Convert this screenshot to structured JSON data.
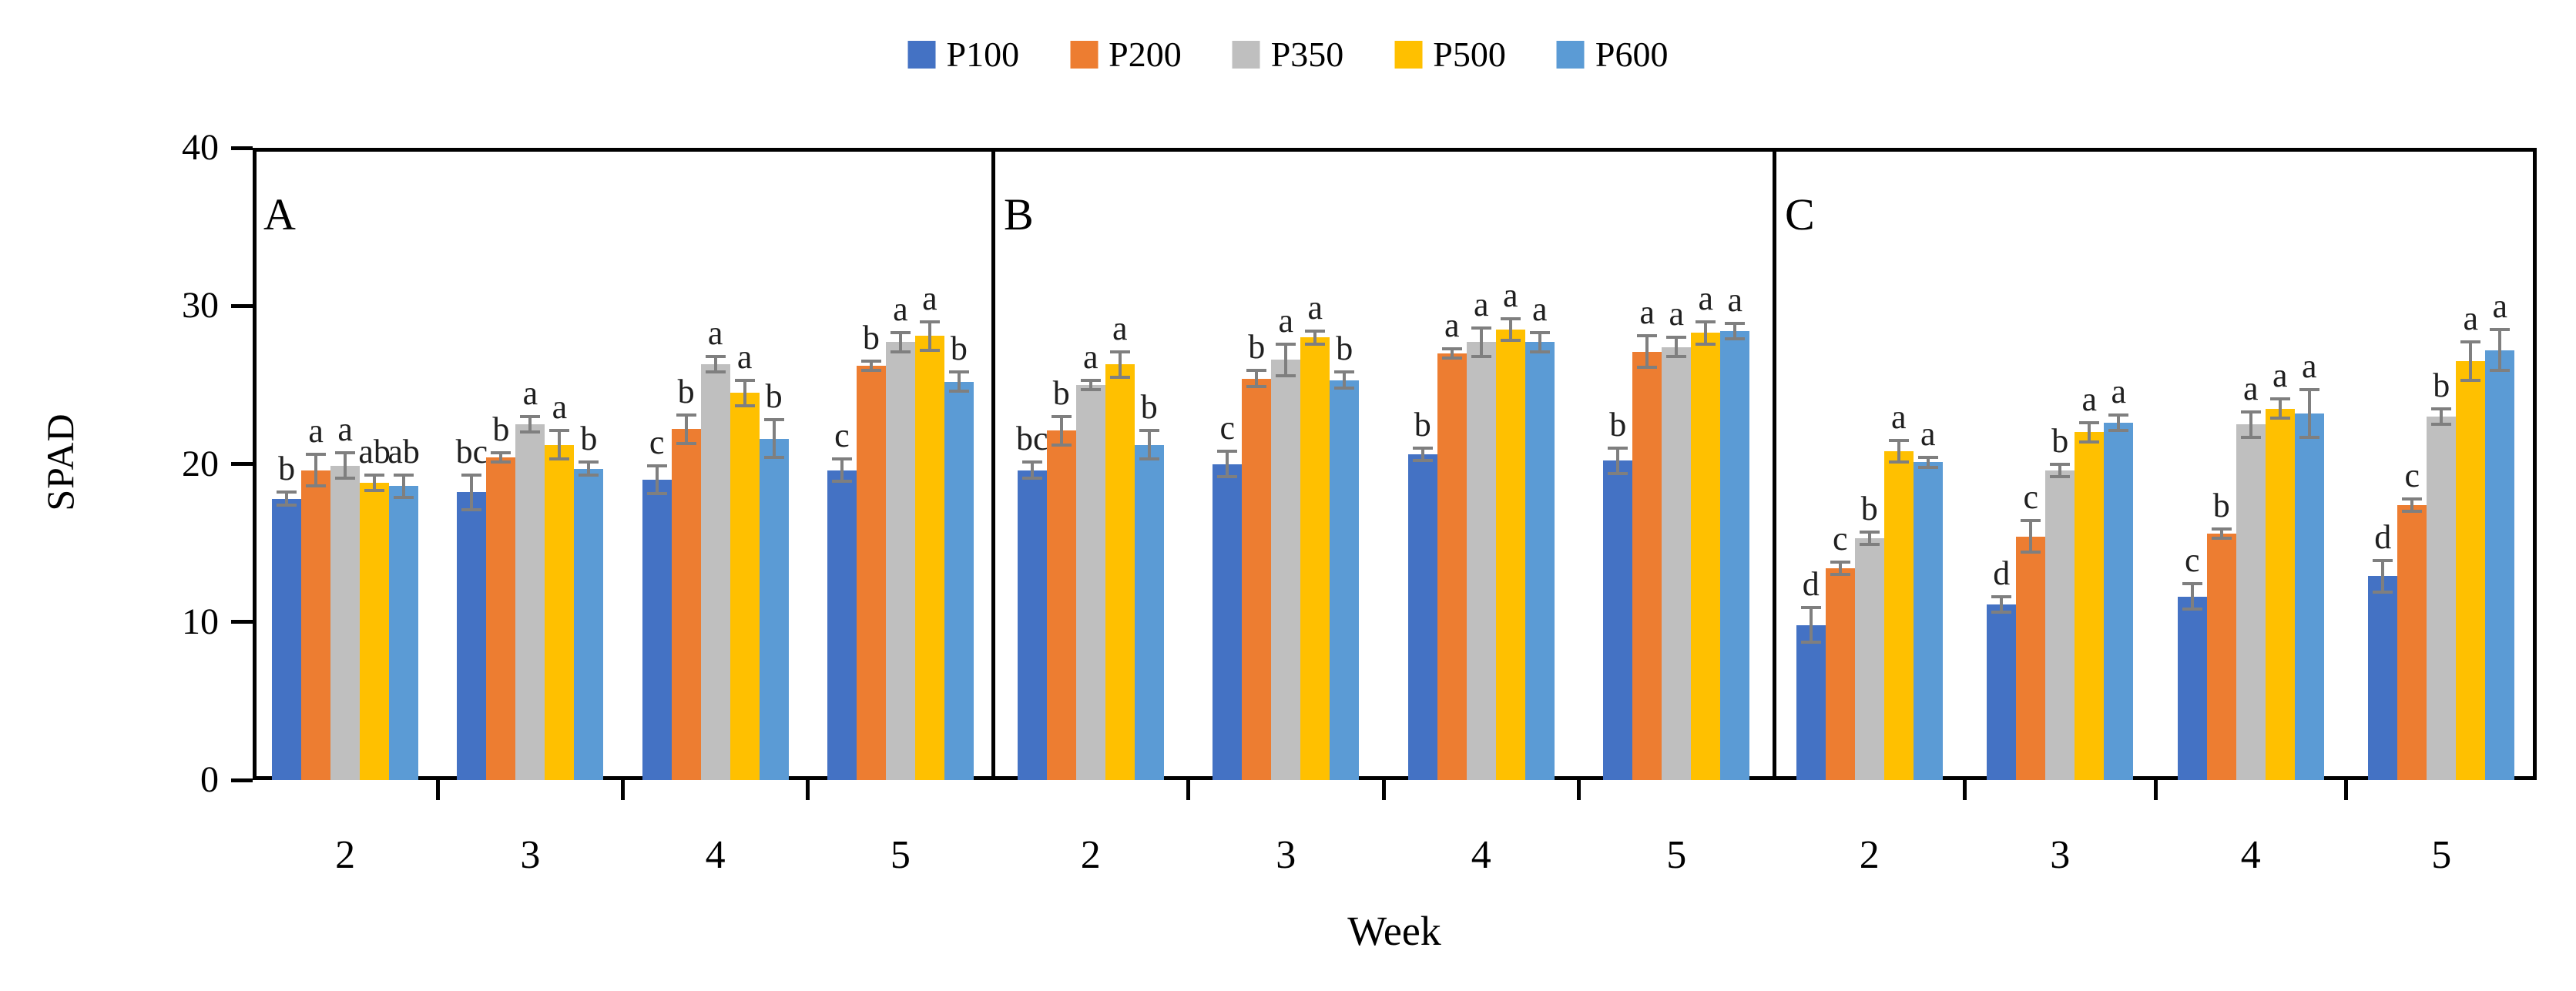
{
  "chart_data": {
    "type": "bar",
    "title": "",
    "xlabel": "Week",
    "ylabel": "SPAD",
    "ylim": [
      0,
      40
    ],
    "yticks": [
      0,
      10,
      20,
      30,
      40
    ],
    "categories": [
      "2",
      "3",
      "4",
      "5"
    ],
    "grid": false,
    "legend_position": "top-center",
    "error_bar_color": "#7f7f7f",
    "axis_color": "#000000",
    "series_names": [
      "P100",
      "P200",
      "P350",
      "P500",
      "P600"
    ],
    "series_colors": [
      "#4472C4",
      "#ED7D31",
      "#BFBFBF",
      "#FFC000",
      "#5B9BD5"
    ],
    "panels": [
      {
        "label": "A",
        "series": [
          {
            "name": "P100",
            "color": "#4472C4",
            "values": [
              17.8,
              18.2,
              19.0,
              19.6
            ],
            "errors": [
              0.4,
              1.1,
              0.9,
              0.7
            ],
            "letters": [
              "b",
              "bc",
              "c",
              "c"
            ]
          },
          {
            "name": "P200",
            "color": "#ED7D31",
            "values": [
              19.6,
              20.4,
              22.2,
              26.2
            ],
            "errors": [
              1.0,
              0.3,
              0.9,
              0.3
            ],
            "letters": [
              "a",
              "b",
              "b",
              "b"
            ]
          },
          {
            "name": "P350",
            "color": "#BFBFBF",
            "values": [
              19.9,
              22.5,
              26.3,
              27.7
            ],
            "errors": [
              0.8,
              0.5,
              0.5,
              0.6
            ],
            "letters": [
              "a",
              "a",
              "a",
              "a"
            ]
          },
          {
            "name": "P500",
            "color": "#FFC000",
            "values": [
              18.8,
              21.2,
              24.5,
              28.1
            ],
            "errors": [
              0.5,
              0.9,
              0.8,
              0.9
            ],
            "letters": [
              "ab",
              "a",
              "a",
              "a"
            ]
          },
          {
            "name": "P600",
            "color": "#5B9BD5",
            "values": [
              18.6,
              19.7,
              21.6,
              25.2
            ],
            "errors": [
              0.7,
              0.4,
              1.2,
              0.6
            ],
            "letters": [
              "ab",
              "b",
              "b",
              "b"
            ]
          }
        ]
      },
      {
        "label": "B",
        "series": [
          {
            "name": "P100",
            "color": "#4472C4",
            "values": [
              19.6,
              20.0,
              20.6,
              20.2
            ],
            "errors": [
              0.5,
              0.8,
              0.4,
              0.8
            ],
            "letters": [
              "bc",
              "c",
              "b",
              "b"
            ]
          },
          {
            "name": "P200",
            "color": "#ED7D31",
            "values": [
              22.1,
              25.4,
              27.0,
              27.1
            ],
            "errors": [
              0.9,
              0.5,
              0.3,
              1.0
            ],
            "letters": [
              "b",
              "b",
              "a",
              "a"
            ]
          },
          {
            "name": "P350",
            "color": "#BFBFBF",
            "values": [
              25.0,
              26.6,
              27.7,
              27.4
            ],
            "errors": [
              0.3,
              1.0,
              0.9,
              0.6
            ],
            "letters": [
              "a",
              "a",
              "a",
              "a"
            ]
          },
          {
            "name": "P500",
            "color": "#FFC000",
            "values": [
              26.3,
              28.0,
              28.5,
              28.3
            ],
            "errors": [
              0.8,
              0.4,
              0.7,
              0.7
            ],
            "letters": [
              "a",
              "a",
              "a",
              "a"
            ]
          },
          {
            "name": "P600",
            "color": "#5B9BD5",
            "values": [
              21.2,
              25.3,
              27.7,
              28.4
            ],
            "errors": [
              0.9,
              0.5,
              0.6,
              0.5
            ],
            "letters": [
              "b",
              "b",
              "a",
              "a"
            ]
          }
        ]
      },
      {
        "label": "C",
        "series": [
          {
            "name": "P100",
            "color": "#4472C4",
            "values": [
              9.8,
              11.1,
              11.6,
              12.9
            ],
            "errors": [
              1.1,
              0.5,
              0.8,
              1.0
            ],
            "letters": [
              "d",
              "d",
              "c",
              "d"
            ]
          },
          {
            "name": "P200",
            "color": "#ED7D31",
            "values": [
              13.4,
              15.4,
              15.6,
              17.4
            ],
            "errors": [
              0.4,
              1.0,
              0.3,
              0.4
            ],
            "letters": [
              "c",
              "c",
              "b",
              "c"
            ]
          },
          {
            "name": "P350",
            "color": "#BFBFBF",
            "values": [
              15.3,
              19.6,
              22.5,
              23.0
            ],
            "errors": [
              0.4,
              0.4,
              0.8,
              0.5
            ],
            "letters": [
              "b",
              "b",
              "a",
              "b"
            ]
          },
          {
            "name": "P500",
            "color": "#FFC000",
            "values": [
              20.8,
              22.0,
              23.5,
              26.5
            ],
            "errors": [
              0.7,
              0.6,
              0.6,
              1.2
            ],
            "letters": [
              "a",
              "a",
              "a",
              "a"
            ]
          },
          {
            "name": "P600",
            "color": "#5B9BD5",
            "values": [
              20.1,
              22.6,
              23.2,
              27.2
            ],
            "errors": [
              0.3,
              0.5,
              1.5,
              1.3
            ],
            "letters": [
              "a",
              "a",
              "a",
              "a"
            ]
          }
        ]
      }
    ]
  }
}
